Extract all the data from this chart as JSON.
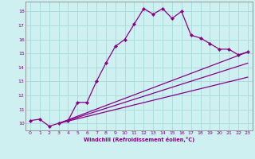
{
  "xlabel": "Windchill (Refroidissement éolien,°C)",
  "bg_color": "#cff0f0",
  "line_color": "#880088",
  "grid_color": "#aadddd",
  "xlim": [
    -0.5,
    23.5
  ],
  "ylim": [
    9.5,
    18.7
  ],
  "yticks": [
    10,
    11,
    12,
    13,
    14,
    15,
    16,
    17,
    18
  ],
  "xticks": [
    0,
    1,
    2,
    3,
    4,
    5,
    6,
    7,
    8,
    9,
    10,
    11,
    12,
    13,
    14,
    15,
    16,
    17,
    18,
    19,
    20,
    21,
    22,
    23
  ],
  "main_line": {
    "x": [
      0,
      1,
      2,
      3,
      4,
      5,
      6,
      7,
      8,
      9,
      10,
      11,
      12,
      13,
      14,
      15,
      16,
      17,
      18,
      19,
      20,
      21,
      22,
      23
    ],
    "y": [
      10.2,
      10.3,
      9.8,
      10.0,
      10.2,
      11.5,
      11.5,
      13.0,
      14.3,
      15.5,
      16.0,
      17.1,
      18.2,
      17.8,
      18.2,
      17.5,
      18.0,
      16.3,
      16.1,
      15.7,
      15.3,
      15.3,
      14.9,
      15.1
    ]
  },
  "straight_lines": [
    {
      "x0": 3,
      "y0": 10.0,
      "x1": 23,
      "y1": 15.1
    },
    {
      "x0": 3,
      "y0": 10.0,
      "x1": 23,
      "y1": 14.3
    },
    {
      "x0": 3,
      "y0": 10.0,
      "x1": 23,
      "y1": 13.3
    }
  ]
}
